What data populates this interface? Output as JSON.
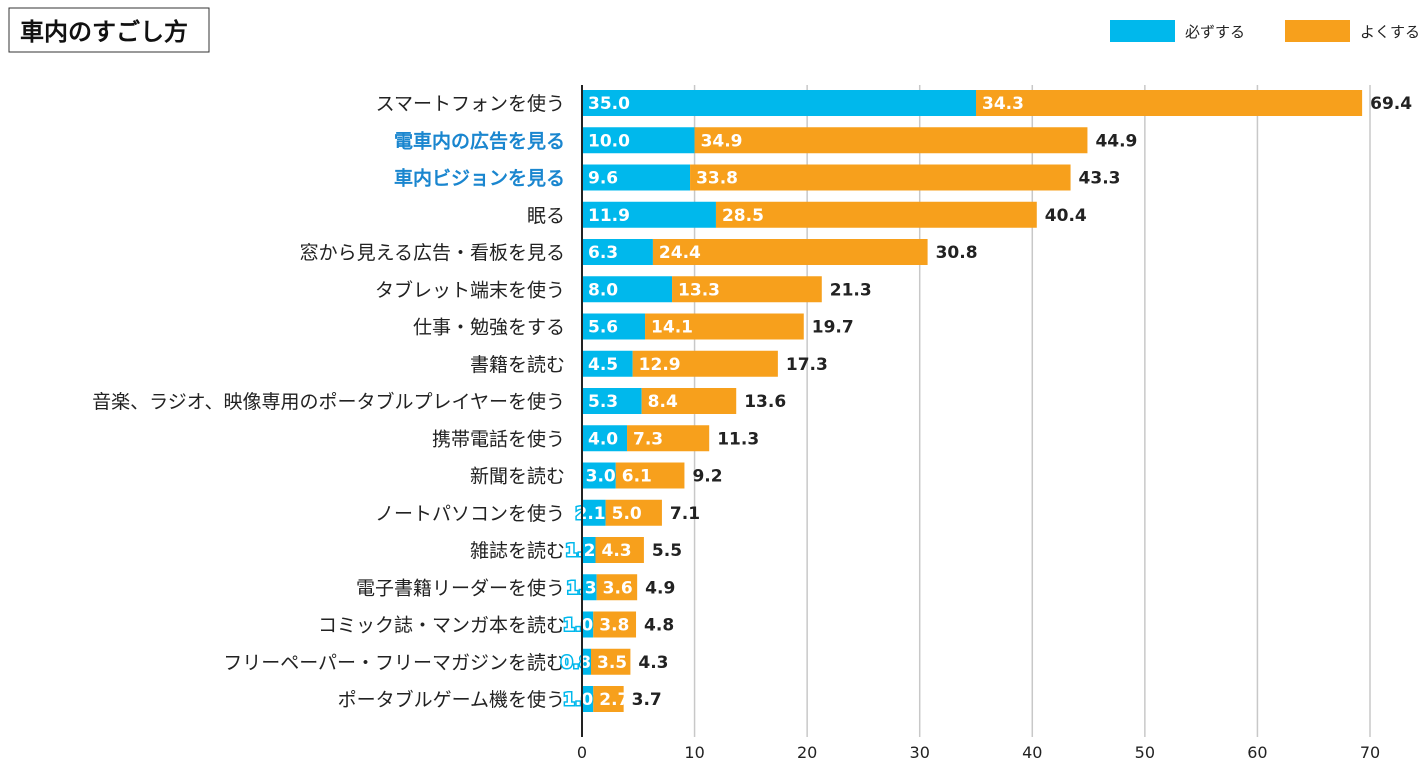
{
  "chart_data": {
    "type": "bar",
    "orientation": "horizontal",
    "stacked": true,
    "title": "車内のすごし方",
    "legend_position": "top-right",
    "xlim": [
      0,
      70
    ],
    "xticks": [
      0,
      10,
      20,
      30,
      40,
      50,
      60,
      70
    ],
    "grid": true,
    "colors": {
      "series0": "#00b8ec",
      "series1": "#f7a01c",
      "highlight_label": "#1a86cf"
    },
    "categories": [
      "スマートフォンを使う",
      "電車内の広告を見る",
      "車内ビジョンを見る",
      "眠る",
      "窓から見える広告・看板を見る",
      "タブレット端末を使う",
      "仕事・勉強をする",
      "書籍を読む",
      "音楽、ラジオ、映像専用のポータブルプレイヤーを使う",
      "携帯電話を使う",
      "新聞を読む",
      "ノートパソコンを使う",
      "雑誌を読む",
      "電子書籍リーダーを使う",
      "コミック誌・マンガ本を読む",
      "フリーペーパー・フリーマガジンを読む",
      "ポータブルゲーム機を使う"
    ],
    "highlighted_categories": [
      "電車内の広告を見る",
      "車内ビジョンを見る"
    ],
    "series": [
      {
        "name": "必ずする",
        "values": [
          35.0,
          10.0,
          9.6,
          11.9,
          6.3,
          8.0,
          5.6,
          4.5,
          5.3,
          4.0,
          3.0,
          2.1,
          1.2,
          1.3,
          1.0,
          0.8,
          1.0
        ]
      },
      {
        "name": "よくする",
        "values": [
          34.3,
          34.9,
          33.8,
          28.5,
          24.4,
          13.3,
          14.1,
          12.9,
          8.4,
          7.3,
          6.1,
          5.0,
          4.3,
          3.6,
          3.8,
          3.5,
          2.7
        ]
      }
    ],
    "totals": [
      69.4,
      44.9,
      43.3,
      40.4,
      30.8,
      21.3,
      19.7,
      17.3,
      13.6,
      11.3,
      9.2,
      7.1,
      5.5,
      4.9,
      4.8,
      4.3,
      3.7
    ]
  }
}
